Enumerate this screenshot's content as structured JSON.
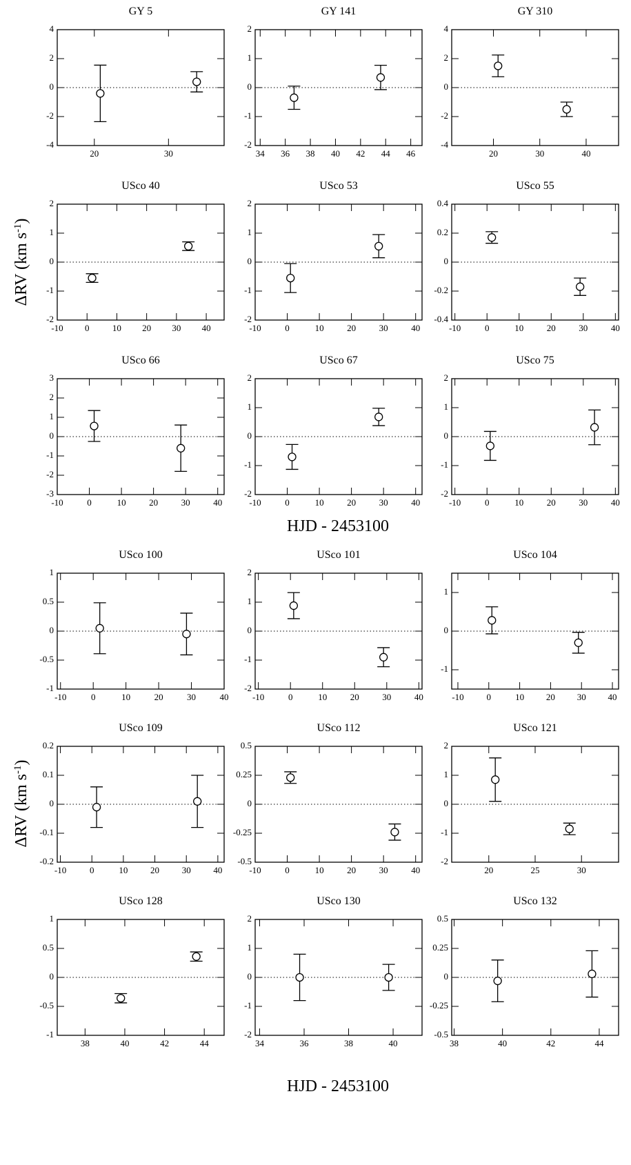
{
  "figures": [
    {
      "ylabel": [
        "ΔRV  (km s",
        "-1",
        ")"
      ],
      "xlabel": "HJD - 2453100"
    },
    {
      "ylabel": [
        "ΔRV  (km s",
        "-1",
        ")"
      ],
      "xlabel": "HJD - 2453100"
    }
  ],
  "chart_data": [
    {
      "type": "scatter",
      "title": "GY 5",
      "x": [
        20.8,
        33.8
      ],
      "values": [
        -0.4,
        0.4
      ],
      "errors": [
        1.95,
        0.7
      ],
      "xlim": [
        15,
        37.5
      ],
      "xticks": [
        20,
        30
      ],
      "ylim": [
        -4,
        4
      ],
      "yticks": [
        -4,
        -2,
        0,
        2,
        4
      ],
      "reference_line": 0
    },
    {
      "type": "scatter",
      "title": "GY 141",
      "x": [
        36.7,
        43.6
      ],
      "values": [
        -0.35,
        0.35
      ],
      "errors": [
        0.4,
        0.42
      ],
      "xlim": [
        33.6,
        46.9
      ],
      "xticks": [
        34,
        36,
        38,
        40,
        42,
        44,
        46
      ],
      "ylim": [
        -2,
        2
      ],
      "yticks": [
        -2,
        -1,
        0,
        1,
        2
      ],
      "reference_line": 0
    },
    {
      "type": "scatter",
      "title": "GY 310",
      "x": [
        21,
        35.8
      ],
      "values": [
        1.5,
        -1.5
      ],
      "errors": [
        0.75,
        0.5
      ],
      "xlim": [
        11,
        47
      ],
      "xticks": [
        20,
        30,
        40
      ],
      "ylim": [
        -4,
        4
      ],
      "yticks": [
        -4,
        -2,
        0,
        2,
        4
      ],
      "reference_line": 0
    },
    {
      "type": "scatter",
      "title": "USco 40",
      "x": [
        1.7,
        34
      ],
      "values": [
        -0.55,
        0.55
      ],
      "errors": [
        0.15,
        0.15
      ],
      "xlim": [
        -10,
        46
      ],
      "xticks": [
        -10,
        0,
        10,
        20,
        30,
        40
      ],
      "ylim": [
        -2,
        2
      ],
      "yticks": [
        -2,
        -1,
        0,
        1,
        2
      ],
      "reference_line": 0
    },
    {
      "type": "scatter",
      "title": "USco 53",
      "x": [
        1,
        28.5
      ],
      "values": [
        -0.55,
        0.55
      ],
      "errors": [
        0.5,
        0.4
      ],
      "xlim": [
        -10,
        42
      ],
      "xticks": [
        -10,
        0,
        10,
        20,
        30,
        40
      ],
      "ylim": [
        -2,
        2
      ],
      "yticks": [
        -2,
        -1,
        0,
        1,
        2
      ],
      "reference_line": 0
    },
    {
      "type": "scatter",
      "title": "USco 55",
      "x": [
        1.5,
        29
      ],
      "values": [
        0.17,
        -0.17
      ],
      "errors": [
        0.04,
        0.06
      ],
      "xlim": [
        -11,
        41
      ],
      "xticks": [
        -10,
        0,
        10,
        20,
        30,
        40
      ],
      "ylim": [
        -0.4,
        0.4
      ],
      "yticks": [
        -0.4,
        -0.2,
        0,
        0.2,
        0.4
      ],
      "reference_line": 0
    },
    {
      "type": "scatter",
      "title": "USco 66",
      "x": [
        1.5,
        28.5
      ],
      "values": [
        0.55,
        -0.6
      ],
      "errors": [
        0.8,
        1.2
      ],
      "xlim": [
        -10,
        42
      ],
      "xticks": [
        -10,
        0,
        10,
        20,
        30,
        40
      ],
      "ylim": [
        -3,
        3
      ],
      "yticks": [
        -3,
        -2,
        -1,
        0,
        1,
        2,
        3
      ],
      "reference_line": 0
    },
    {
      "type": "scatter",
      "title": "USco 67",
      "x": [
        1.5,
        28.5
      ],
      "values": [
        -0.7,
        0.68
      ],
      "errors": [
        0.43,
        0.3
      ],
      "xlim": [
        -10,
        42
      ],
      "xticks": [
        -10,
        0,
        10,
        20,
        30,
        40
      ],
      "ylim": [
        -2,
        2
      ],
      "yticks": [
        -2,
        -1,
        0,
        1,
        2
      ],
      "reference_line": 0
    },
    {
      "type": "scatter",
      "title": "USco 75",
      "x": [
        1,
        33.5
      ],
      "values": [
        -0.32,
        0.32
      ],
      "errors": [
        0.5,
        0.6
      ],
      "xlim": [
        -11,
        41
      ],
      "xticks": [
        -10,
        0,
        10,
        20,
        30,
        40
      ],
      "ylim": [
        -2,
        2
      ],
      "yticks": [
        -2,
        -1,
        0,
        1,
        2
      ],
      "reference_line": 0
    },
    {
      "type": "scatter",
      "title": "USco 100",
      "x": [
        2,
        28.5
      ],
      "values": [
        0.05,
        -0.05
      ],
      "errors": [
        0.44,
        0.36
      ],
      "xlim": [
        -11,
        40
      ],
      "xticks": [
        -10,
        0,
        10,
        20,
        30,
        40
      ],
      "ylim": [
        -1,
        1
      ],
      "yticks": [
        -1,
        -0.5,
        0,
        0.5,
        1
      ],
      "reference_line": 0
    },
    {
      "type": "scatter",
      "title": "USco 101",
      "x": [
        1,
        29
      ],
      "values": [
        0.88,
        -0.9
      ],
      "errors": [
        0.45,
        0.33
      ],
      "xlim": [
        -11,
        41
      ],
      "xticks": [
        -10,
        0,
        10,
        20,
        30,
        40
      ],
      "ylim": [
        -2,
        2
      ],
      "yticks": [
        -2,
        -1,
        0,
        1,
        2
      ],
      "reference_line": 0
    },
    {
      "type": "scatter",
      "title": "USco 104",
      "x": [
        1,
        29
      ],
      "values": [
        0.28,
        -0.3
      ],
      "errors": [
        0.35,
        0.27
      ],
      "xlim": [
        -12,
        42
      ],
      "xticks": [
        -10,
        0,
        10,
        20,
        30,
        40
      ],
      "ylim": [
        -1.5,
        1.5
      ],
      "yticks": [
        -1,
        0,
        1
      ],
      "reference_line": 0
    },
    {
      "type": "scatter",
      "title": "USco 109",
      "x": [
        1.5,
        33.5
      ],
      "values": [
        -0.01,
        0.01
      ],
      "errors": [
        0.07,
        0.09
      ],
      "xlim": [
        -11,
        42
      ],
      "xticks": [
        -10,
        0,
        10,
        20,
        30,
        40
      ],
      "ylim": [
        -0.2,
        0.2
      ],
      "yticks": [
        -0.2,
        -0.1,
        0,
        0.1,
        0.2
      ],
      "reference_line": 0
    },
    {
      "type": "scatter",
      "title": "USco 112",
      "x": [
        1,
        33.5
      ],
      "values": [
        0.23,
        -0.24
      ],
      "errors": [
        0.05,
        0.07
      ],
      "xlim": [
        -10,
        42
      ],
      "xticks": [
        -10,
        0,
        10,
        20,
        30,
        40
      ],
      "ylim": [
        -0.5,
        0.5
      ],
      "yticks": [
        -0.5,
        -0.25,
        0,
        0.25,
        0.5
      ],
      "reference_line": 0
    },
    {
      "type": "scatter",
      "title": "USco 121",
      "x": [
        20.7,
        28.7
      ],
      "values": [
        0.85,
        -0.85
      ],
      "errors": [
        0.75,
        0.2
      ],
      "xlim": [
        16,
        34
      ],
      "xticks": [
        20,
        25,
        30
      ],
      "ylim": [
        -2,
        2
      ],
      "yticks": [
        -2,
        -1,
        0,
        1,
        2
      ],
      "reference_line": 0
    },
    {
      "type": "scatter",
      "title": "USco 128",
      "x": [
        39.8,
        43.6
      ],
      "values": [
        -0.36,
        0.36
      ],
      "errors": [
        0.08,
        0.08
      ],
      "xlim": [
        36.6,
        45
      ],
      "xticks": [
        38,
        40,
        42,
        44
      ],
      "ylim": [
        -1,
        1
      ],
      "yticks": [
        -1,
        -0.5,
        0,
        0.5,
        1
      ],
      "reference_line": 0
    },
    {
      "type": "scatter",
      "title": "USco 130",
      "x": [
        35.8,
        39.8
      ],
      "values": [
        0,
        0
      ],
      "errors": [
        0.8,
        0.45
      ],
      "xlim": [
        33.8,
        41.3
      ],
      "xticks": [
        34,
        36,
        38,
        40
      ],
      "ylim": [
        -2,
        2
      ],
      "yticks": [
        -2,
        -1,
        0,
        1,
        2
      ],
      "reference_line": 0
    },
    {
      "type": "scatter",
      "title": "USco 132",
      "x": [
        39.8,
        43.7
      ],
      "values": [
        -0.03,
        0.03
      ],
      "errors": [
        0.18,
        0.2
      ],
      "xlim": [
        37.9,
        44.8
      ],
      "xticks": [
        38,
        40,
        42,
        44
      ],
      "ylim": [
        -0.5,
        0.5
      ],
      "yticks": [
        -0.5,
        -0.25,
        0,
        0.25,
        0.5
      ],
      "reference_line": 0
    }
  ]
}
